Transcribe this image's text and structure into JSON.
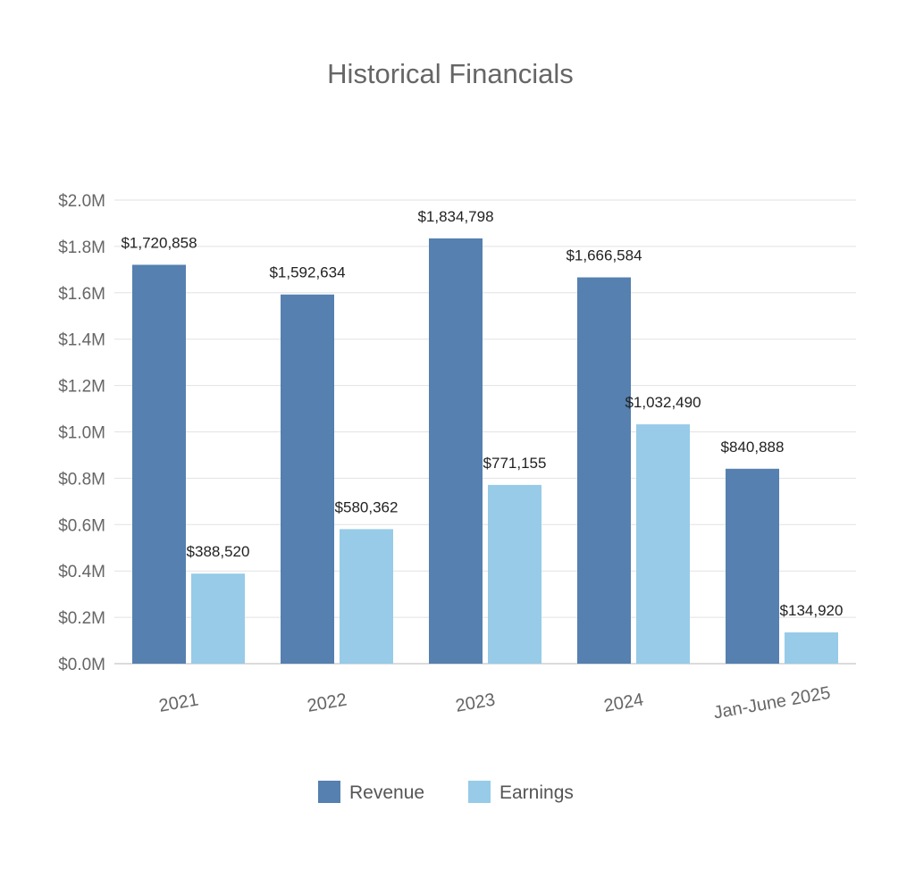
{
  "chart_data": {
    "type": "bar",
    "title": "Historical Financials",
    "categories": [
      "2021",
      "2022",
      "2023",
      "2024",
      "Jan-June 2025"
    ],
    "series": [
      {
        "name": "Revenue",
        "color": "#5580b0",
        "values": [
          1720858,
          1592634,
          1834798,
          1666584,
          840888
        ],
        "labels": [
          "$1,720,858",
          "$1,592,634",
          "$1,834,798",
          "$1,666,584",
          "$840,888"
        ]
      },
      {
        "name": "Earnings",
        "color": "#97cbe8",
        "values": [
          388520,
          580362,
          771155,
          1032490,
          134920
        ],
        "labels": [
          "$388,520",
          "$580,362",
          "$771,155",
          "$1,032,490",
          "$134,920"
        ]
      }
    ],
    "ylim": [
      0,
      2000000
    ],
    "yticks": [
      "$0.0M",
      "$0.2M",
      "$0.4M",
      "$0.6M",
      "$0.8M",
      "$1.0M",
      "$1.2M",
      "$1.4M",
      "$1.6M",
      "$1.8M",
      "$2.0M"
    ],
    "grid": true,
    "legend": "bottom-center"
  }
}
